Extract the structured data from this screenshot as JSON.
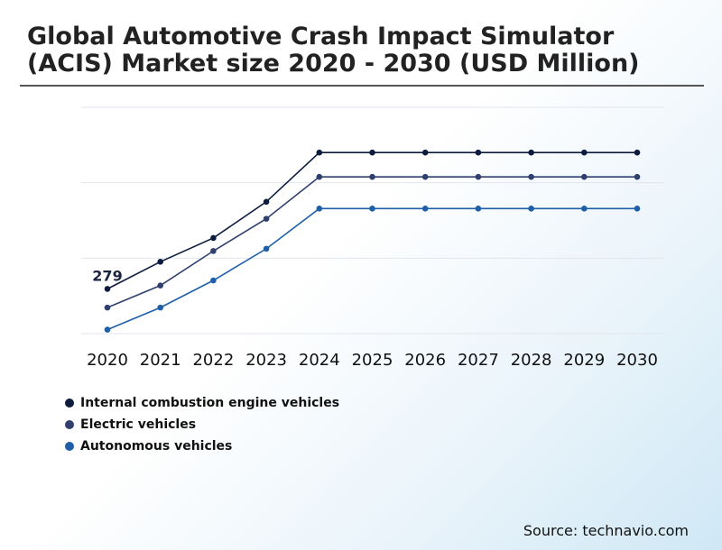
{
  "title": "Global Automotive Crash Impact Simulator (ACIS) Market size 2020 - 2030 (USD Million)",
  "source": "Source: technavio.com",
  "chart_data": {
    "type": "line",
    "title": "Global Automotive Crash Impact Simulator (ACIS) Market size 2020 - 2030 (USD Million)",
    "xlabel": "",
    "ylabel": "",
    "categories": [
      "2020",
      "2021",
      "2022",
      "2023",
      "2024",
      "2025",
      "2026",
      "2027",
      "2028",
      "2029",
      "2030"
    ],
    "ylim": [
      200,
      600
    ],
    "grid": true,
    "legend_position": "bottom-left",
    "series": [
      {
        "name": "Internal combustion engine vehicles",
        "color": "#0d1b3e",
        "values": [
          279,
          327,
          369,
          433,
          520,
          520,
          520,
          520,
          520,
          520,
          520
        ],
        "first_label": "279"
      },
      {
        "name": "Electric vehicles",
        "color": "#2f3f6e",
        "values": [
          246,
          285,
          346,
          403,
          477,
          477,
          477,
          477,
          477,
          477,
          477
        ]
      },
      {
        "name": "Autonomous vehicles",
        "color": "#1f5fa8",
        "values": [
          207,
          246,
          294,
          350,
          421,
          421,
          421,
          421,
          421,
          421,
          421
        ]
      }
    ]
  }
}
